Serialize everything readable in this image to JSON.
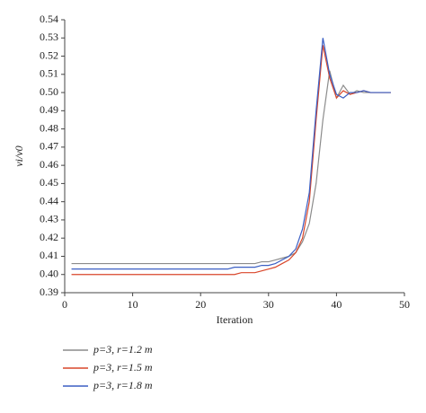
{
  "chart_data": {
    "type": "line",
    "xlabel": "Iteration",
    "ylabel": "vi/v0",
    "x": [
      1,
      2,
      3,
      4,
      5,
      6,
      7,
      8,
      9,
      10,
      11,
      12,
      13,
      14,
      15,
      16,
      17,
      18,
      19,
      20,
      21,
      22,
      23,
      24,
      25,
      26,
      27,
      28,
      29,
      30,
      31,
      32,
      33,
      34,
      35,
      36,
      37,
      38,
      39,
      40,
      41,
      42,
      43,
      44,
      45,
      46,
      47,
      48
    ],
    "series": [
      {
        "name": "p=3, r=1.2 m",
        "color": "#8c8c8c",
        "values": [
          0.406,
          0.406,
          0.406,
          0.406,
          0.406,
          0.406,
          0.406,
          0.406,
          0.406,
          0.406,
          0.406,
          0.406,
          0.406,
          0.406,
          0.406,
          0.406,
          0.406,
          0.406,
          0.406,
          0.406,
          0.406,
          0.406,
          0.406,
          0.406,
          0.406,
          0.406,
          0.406,
          0.406,
          0.407,
          0.407,
          0.408,
          0.409,
          0.41,
          0.412,
          0.418,
          0.428,
          0.45,
          0.485,
          0.512,
          0.497,
          0.504,
          0.499,
          0.501,
          0.5,
          0.5,
          0.5,
          0.5,
          0.5
        ]
      },
      {
        "name": "p=3, r=1.5 m",
        "color": "#d9462a",
        "values": [
          0.4,
          0.4,
          0.4,
          0.4,
          0.4,
          0.4,
          0.4,
          0.4,
          0.4,
          0.4,
          0.4,
          0.4,
          0.4,
          0.4,
          0.4,
          0.4,
          0.4,
          0.4,
          0.4,
          0.4,
          0.4,
          0.4,
          0.4,
          0.4,
          0.4,
          0.401,
          0.401,
          0.401,
          0.402,
          0.403,
          0.404,
          0.406,
          0.408,
          0.412,
          0.42,
          0.44,
          0.485,
          0.526,
          0.508,
          0.497,
          0.501,
          0.499,
          0.5,
          0.501,
          0.5,
          0.5,
          0.5,
          0.5
        ]
      },
      {
        "name": "p=3, r=1.8 m",
        "color": "#3b5fc4",
        "values": [
          0.403,
          0.403,
          0.403,
          0.403,
          0.403,
          0.403,
          0.403,
          0.403,
          0.403,
          0.403,
          0.403,
          0.403,
          0.403,
          0.403,
          0.403,
          0.403,
          0.403,
          0.403,
          0.403,
          0.403,
          0.403,
          0.403,
          0.403,
          0.403,
          0.404,
          0.404,
          0.404,
          0.404,
          0.405,
          0.405,
          0.406,
          0.408,
          0.41,
          0.414,
          0.425,
          0.445,
          0.49,
          0.53,
          0.51,
          0.499,
          0.497,
          0.5,
          0.5,
          0.501,
          0.5,
          0.5,
          0.5,
          0.5
        ]
      }
    ],
    "xlim": [
      0,
      50
    ],
    "xticks": [
      0,
      10,
      20,
      30,
      40,
      50
    ],
    "ylim": [
      0.39,
      0.54
    ],
    "yticks": [
      0.39,
      {
        "value": 0.4,
        "label": "0.40"
      },
      0.41,
      0.42,
      0.43,
      0.44,
      0.45,
      0.46,
      0.47,
      0.48,
      0.49,
      {
        "value": 0.5,
        "label": "0.50"
      },
      0.51,
      0.52,
      0.53,
      0.54
    ],
    "grid": false
  }
}
